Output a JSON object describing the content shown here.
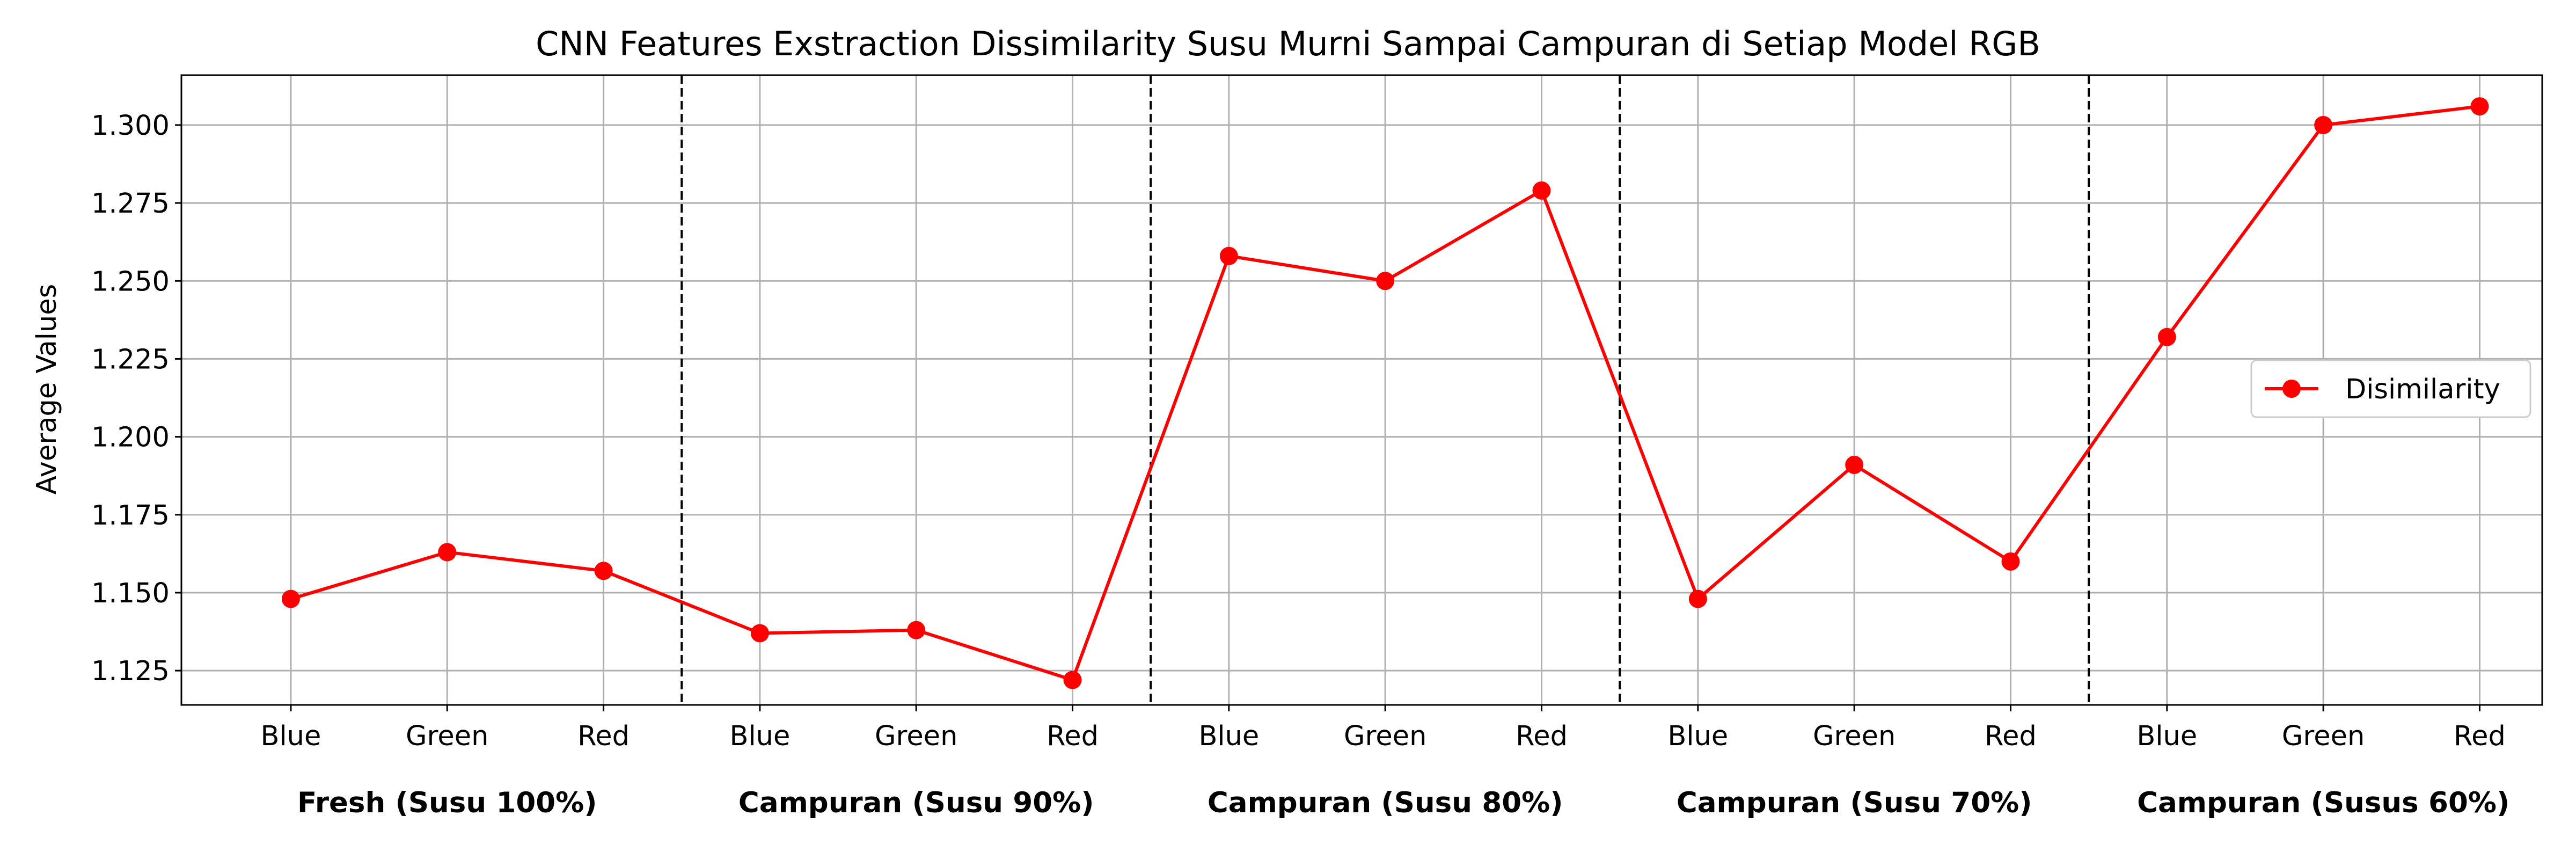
{
  "chart_data": {
    "type": "line",
    "title": "CNN Features Exstraction Dissimilarity Susu Murni Sampai Campuran di Setiap Model RGB",
    "xlabel": "",
    "ylabel": "Average Values",
    "categories": [
      "Blue",
      "Green",
      "Red",
      "Blue",
      "Green",
      "Red",
      "Blue",
      "Green",
      "Red",
      "Blue",
      "Green",
      "Red",
      "Blue",
      "Green",
      "Red"
    ],
    "groups": [
      {
        "label": "Fresh (Susu 100%)",
        "start": 0,
        "end": 2
      },
      {
        "label": "Campuran (Susu 90%)",
        "start": 3,
        "end": 5
      },
      {
        "label": "Campuran (Susu 80%)",
        "start": 6,
        "end": 8
      },
      {
        "label": "Campuran (Susu 70%)",
        "start": 9,
        "end": 11
      },
      {
        "label": "Campuran (Susus 60%)",
        "start": 12,
        "end": 14
      }
    ],
    "series": [
      {
        "name": "Disimilarity",
        "color": "#ff0000",
        "marker": "circle",
        "values": [
          1.148,
          1.163,
          1.157,
          1.137,
          1.138,
          1.122,
          1.258,
          1.25,
          1.279,
          1.148,
          1.191,
          1.16,
          1.232,
          1.3,
          1.306
        ]
      }
    ],
    "ylim": [
      1.114,
      1.316
    ],
    "yticks": [
      "1.125",
      "1.150",
      "1.175",
      "1.200",
      "1.225",
      "1.250",
      "1.275",
      "1.300"
    ],
    "xlim": [
      -0.7,
      14.4
    ],
    "group_separators": [
      2.5,
      5.5,
      8.5,
      11.5
    ],
    "grid": true,
    "legend_position": "center-right"
  }
}
